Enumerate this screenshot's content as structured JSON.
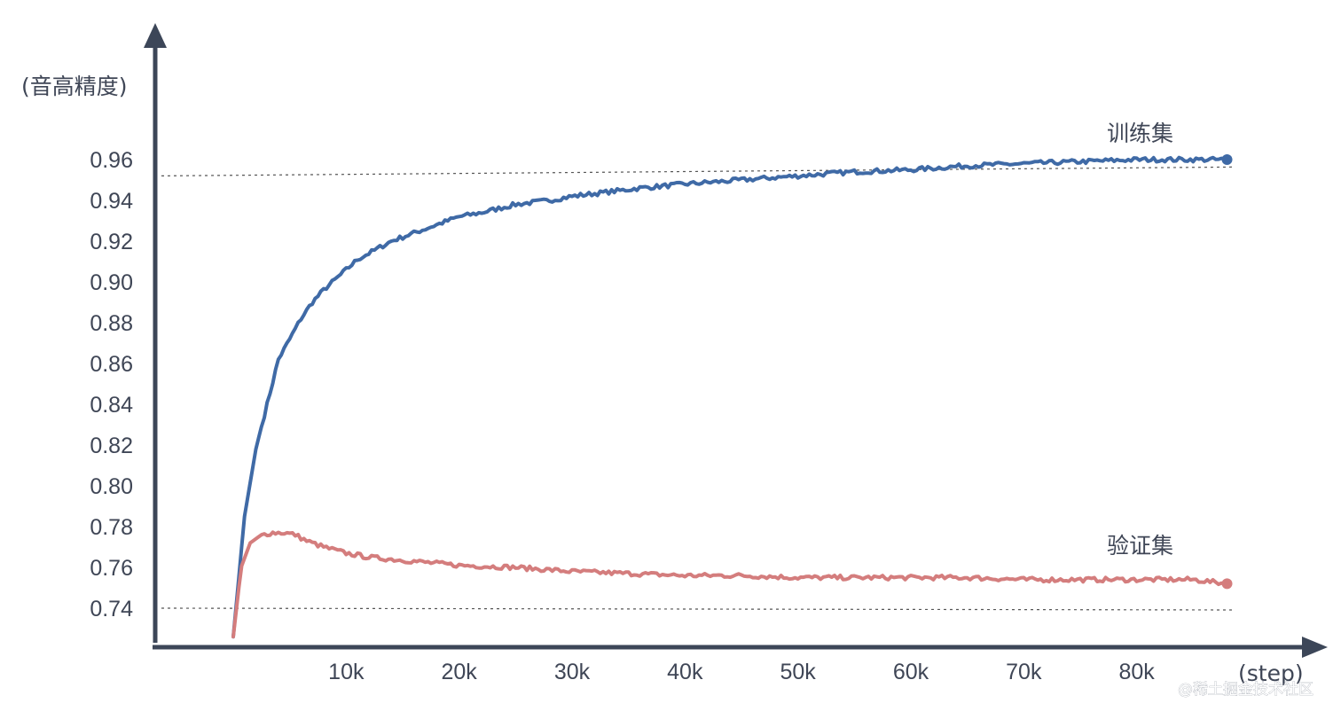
{
  "chart_data": {
    "type": "line",
    "ylabel": "(音高精度)",
    "xlabel": "(step)",
    "xlim": [
      0,
      90000
    ],
    "ylim": [
      0.725,
      0.99
    ],
    "yticks": [
      0.74,
      0.76,
      0.78,
      0.8,
      0.82,
      0.84,
      0.86,
      0.88,
      0.9,
      0.92,
      0.94,
      0.96
    ],
    "ytick_labels": [
      "0.74",
      "0.76",
      "0.78",
      "0.80",
      "0.82",
      "0.84",
      "0.86",
      "0.88",
      "0.90",
      "0.92",
      "0.94",
      "0.96"
    ],
    "xticks": [
      10000,
      20000,
      30000,
      40000,
      50000,
      60000,
      70000,
      80000
    ],
    "xtick_labels": [
      "10k",
      "20k",
      "30k",
      "40k",
      "50k",
      "60k",
      "70k",
      "80k"
    ],
    "reference_lines": [
      0.952,
      0.74
    ],
    "grid": false,
    "series": [
      {
        "name": "训练集",
        "color": "#3f6aa6",
        "x": [
          0,
          1000,
          2000,
          3000,
          4000,
          5000,
          6000,
          7000,
          8000,
          9000,
          10000,
          11000,
          12000,
          13000,
          14000,
          15000,
          16000,
          18000,
          20000,
          22000,
          25000,
          28000,
          30000,
          33000,
          36000,
          40000,
          45000,
          50000,
          55000,
          60000,
          65000,
          70000,
          75000,
          80000,
          85000,
          88000
        ],
        "y": [
          0.726,
          0.785,
          0.818,
          0.84,
          0.862,
          0.872,
          0.882,
          0.89,
          0.896,
          0.901,
          0.906,
          0.911,
          0.914,
          0.917,
          0.92,
          0.922,
          0.924,
          0.928,
          0.932,
          0.934,
          0.938,
          0.94,
          0.942,
          0.944,
          0.946,
          0.948,
          0.95,
          0.952,
          0.954,
          0.955,
          0.957,
          0.958,
          0.959,
          0.96,
          0.96,
          0.96
        ]
      },
      {
        "name": "验证集",
        "color": "#d47d7d",
        "x": [
          0,
          700,
          1500,
          2500,
          3500,
          4500,
          5500,
          6500,
          8000,
          10000,
          12000,
          14000,
          16000,
          18000,
          20000,
          25000,
          30000,
          35000,
          40000,
          45000,
          50000,
          55000,
          60000,
          65000,
          70000,
          75000,
          80000,
          85000,
          88000
        ],
        "y": [
          0.726,
          0.76,
          0.772,
          0.776,
          0.777,
          0.777,
          0.776,
          0.773,
          0.77,
          0.767,
          0.765,
          0.764,
          0.763,
          0.762,
          0.761,
          0.76,
          0.758,
          0.757,
          0.756,
          0.756,
          0.755,
          0.755,
          0.755,
          0.755,
          0.754,
          0.754,
          0.754,
          0.754,
          0.752
        ]
      }
    ]
  },
  "watermark": "@稀土掘金技术社区"
}
